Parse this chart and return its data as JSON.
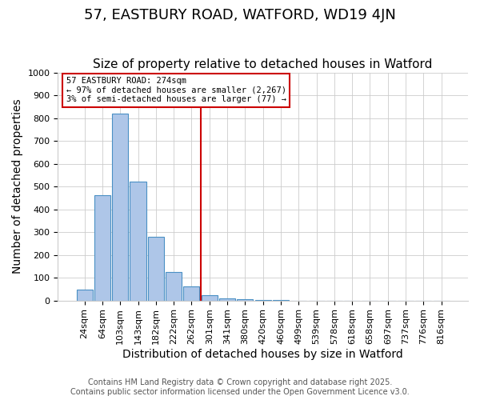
{
  "title": "57, EASTBURY ROAD, WATFORD, WD19 4JN",
  "subtitle": "Size of property relative to detached houses in Watford",
  "xlabel": "Distribution of detached houses by size in Watford",
  "ylabel": "Number of detached properties",
  "footnote1": "Contains HM Land Registry data © Crown copyright and database right 2025.",
  "footnote2": "Contains public sector information licensed under the Open Government Licence v3.0.",
  "annotation_line1": "57 EASTBURY ROAD: 274sqm",
  "annotation_line2": "← 97% of detached houses are smaller (2,267)",
  "annotation_line3": "3% of semi-detached houses are larger (77) →",
  "bar_labels": [
    "24sqm",
    "64sqm",
    "103sqm",
    "143sqm",
    "182sqm",
    "222sqm",
    "262sqm",
    "301sqm",
    "341sqm",
    "380sqm",
    "420sqm",
    "460sqm",
    "499sqm",
    "539sqm",
    "578sqm",
    "618sqm",
    "658sqm",
    "697sqm",
    "737sqm",
    "776sqm",
    "816sqm"
  ],
  "bar_values": [
    46,
    460,
    820,
    520,
    280,
    125,
    60,
    22,
    10,
    5,
    3,
    1,
    0,
    0,
    0,
    0,
    0,
    0,
    0,
    0,
    0
  ],
  "bar_color": "#aec6e8",
  "bar_edgecolor": "#4a90c4",
  "vline_x": 6.5,
  "vline_color": "#cc0000",
  "annotation_box_color": "#cc0000",
  "ylim": [
    0,
    1000
  ],
  "yticks": [
    0,
    100,
    200,
    300,
    400,
    500,
    600,
    700,
    800,
    900,
    1000
  ],
  "background_color": "#ffffff",
  "grid_color": "#cccccc",
  "title_fontsize": 13,
  "subtitle_fontsize": 11,
  "label_fontsize": 10,
  "tick_fontsize": 8,
  "footnote_fontsize": 7
}
